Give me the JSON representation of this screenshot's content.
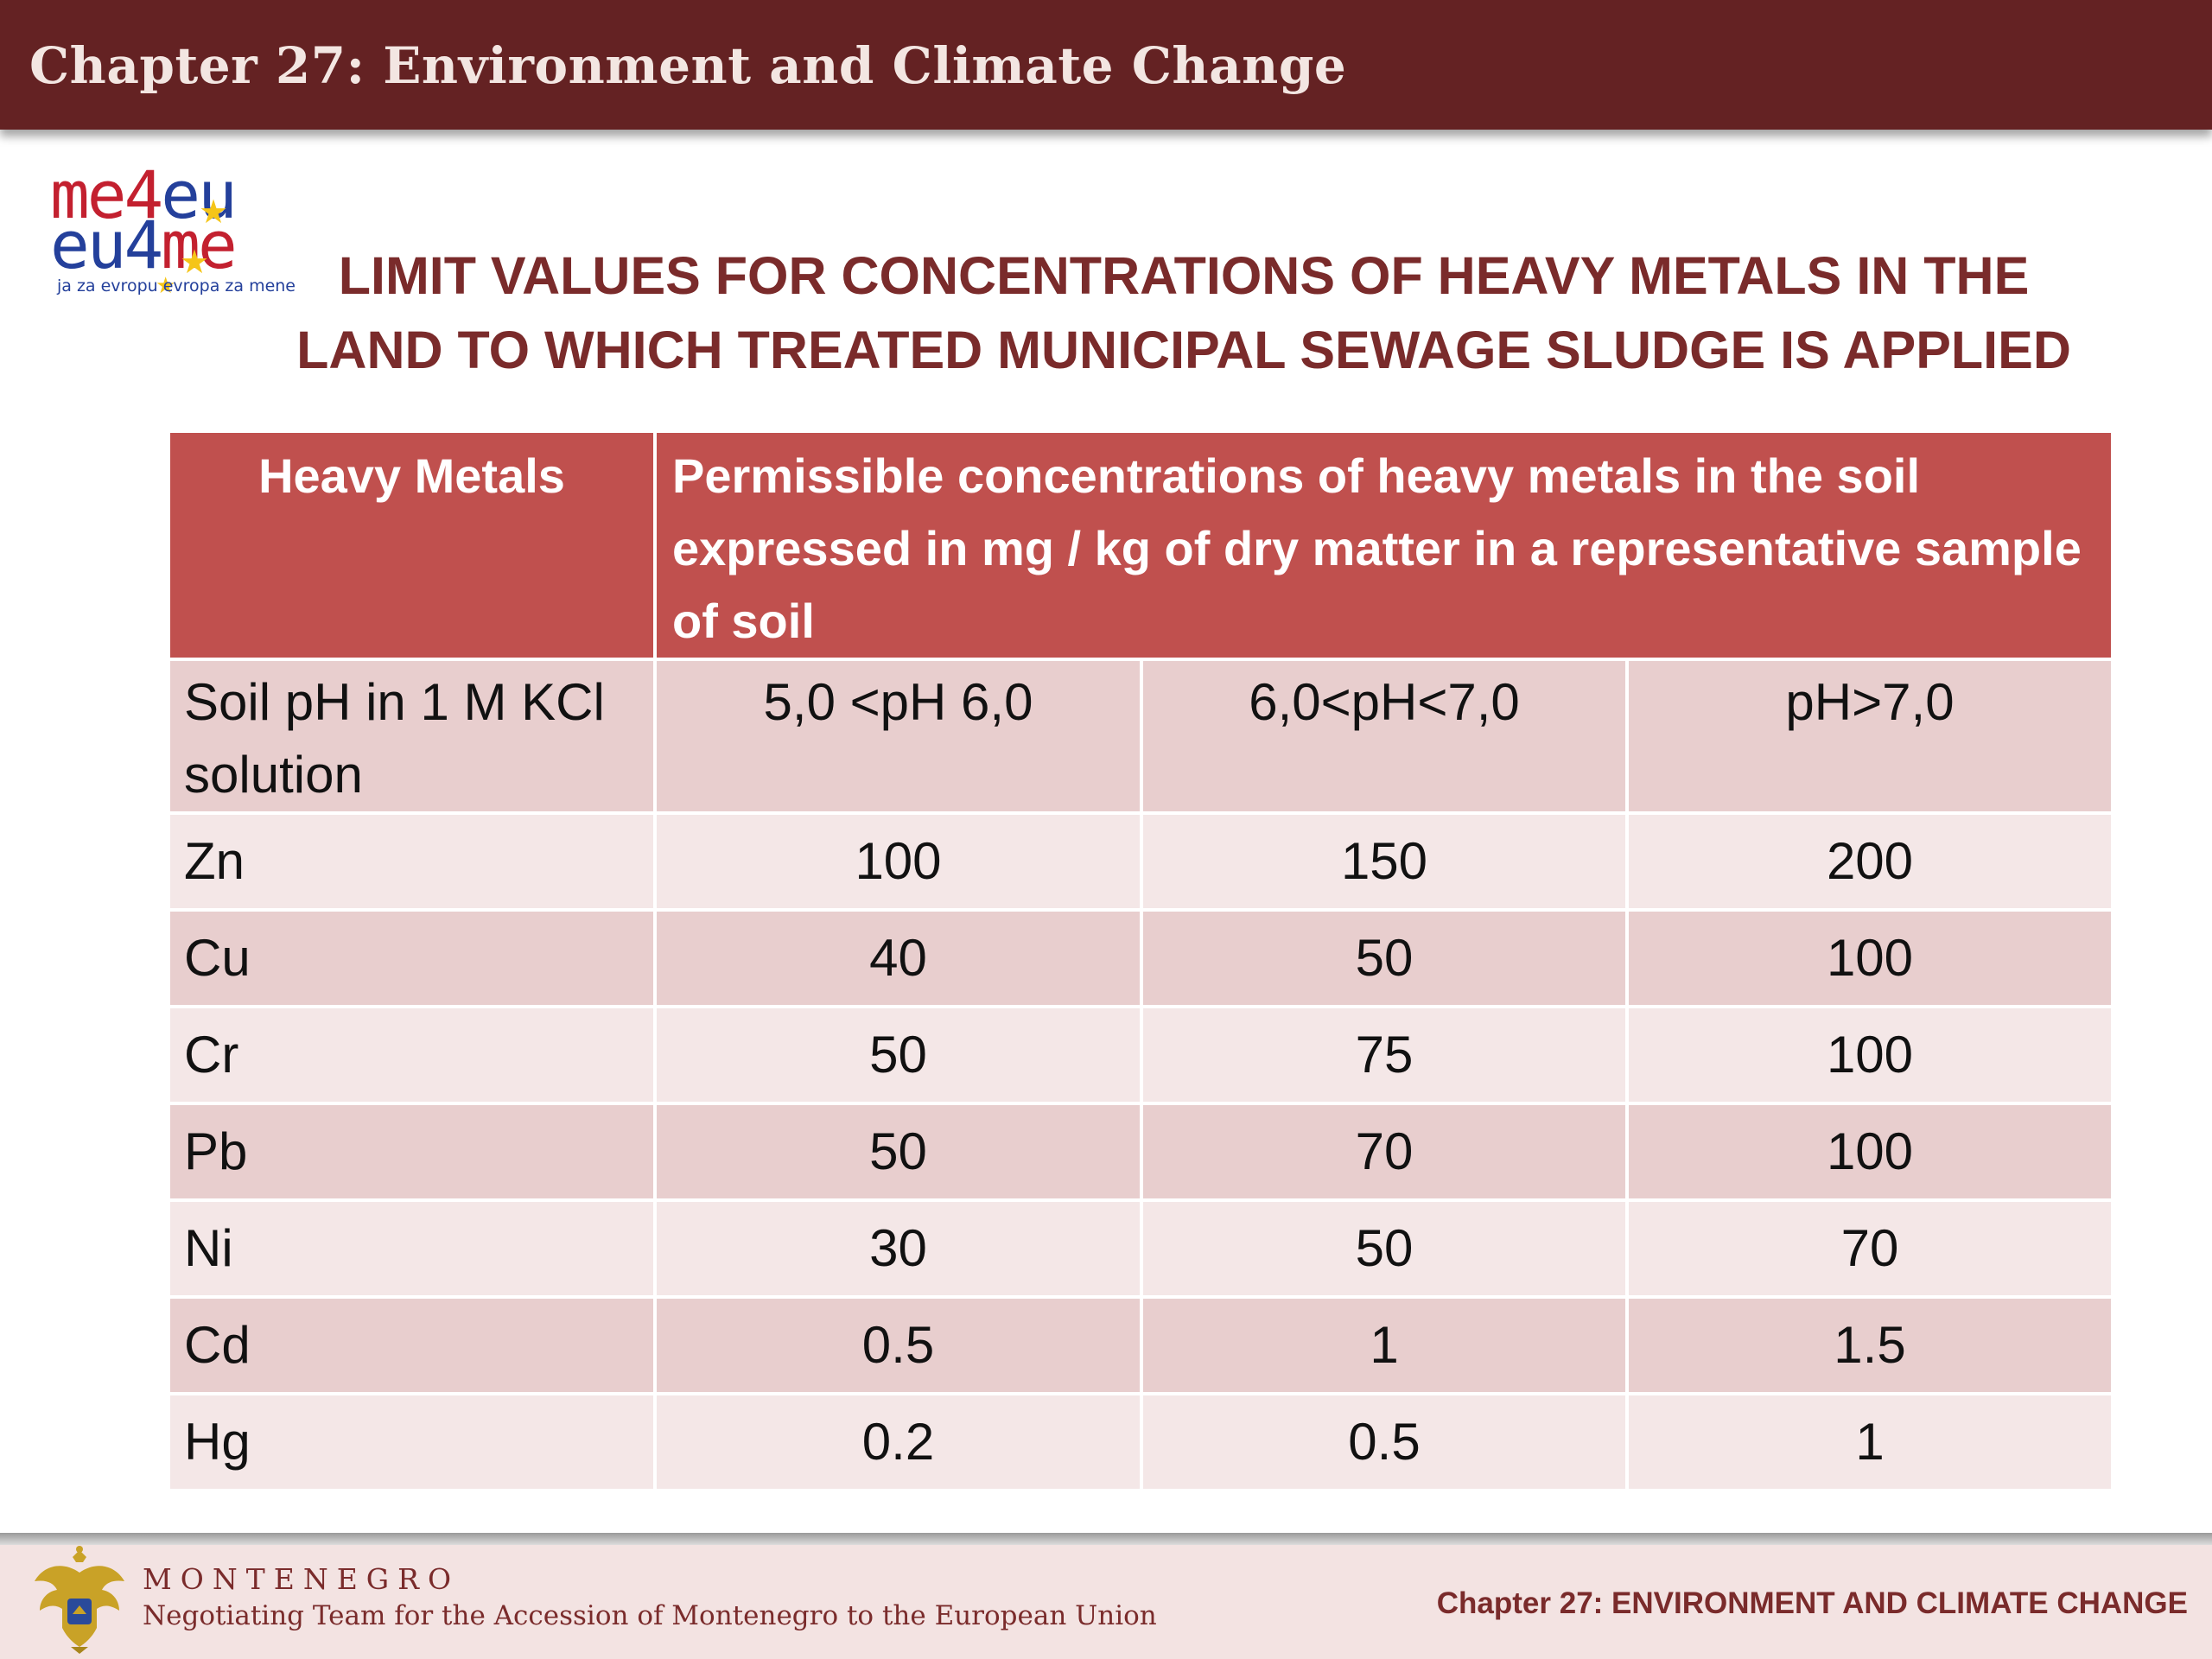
{
  "header": {
    "title": "Chapter 27: Environment and Climate Change"
  },
  "logo": {
    "line1_a": "me4",
    "line1_b": "eu",
    "line2_a": "eu4",
    "line2_b": "me",
    "tagline": "ja za evropu evropa za mene",
    "colors": {
      "red": "#c3202f",
      "blue": "#24409b",
      "star": "#f5c518"
    }
  },
  "title": {
    "line1": "LIMIT VALUES FOR CONCENTRATIONS OF HEAVY METALS IN THE",
    "line2": "LAND TO WHICH TREATED MUNICIPAL SEWAGE SLUDGE IS APPLIED"
  },
  "table": {
    "header": {
      "col1": "Heavy Metals",
      "col2": "Permissible concentrations of heavy metals in the soil expressed in mg / kg of dry matter in a representative sample of soil"
    },
    "ph_row": {
      "label": "Soil pH in 1 M KCl solution",
      "values": [
        "5,0 <pH 6,0",
        "6,0<pH<7,0",
        "pH>7,0"
      ]
    },
    "rows": [
      {
        "metal": "Zn",
        "values": [
          "100",
          "150",
          "200"
        ]
      },
      {
        "metal": "Cu",
        "values": [
          "40",
          "50",
          "100"
        ]
      },
      {
        "metal": "Cr",
        "values": [
          "50",
          "75",
          "100"
        ]
      },
      {
        "metal": "Pb",
        "values": [
          "50",
          "70",
          "100"
        ]
      },
      {
        "metal": "Ni",
        "values": [
          "30",
          "50",
          "70"
        ]
      },
      {
        "metal": "Cd",
        "values": [
          "0.5",
          "1",
          "1.5"
        ]
      },
      {
        "metal": "Hg",
        "values": [
          "0.2",
          "0.5",
          "1"
        ]
      }
    ],
    "colors": {
      "header": "#c0504e",
      "row_dark": "#e8cece",
      "row_light": "#f4e7e7"
    }
  },
  "footer": {
    "country": "MONTENEGRO",
    "team": "Negotiating Team for the Accession of  Montenegro to the European Union",
    "chapter": "Chapter 27:  ENVIRONMENT AND CLIMATE CHANGE"
  }
}
